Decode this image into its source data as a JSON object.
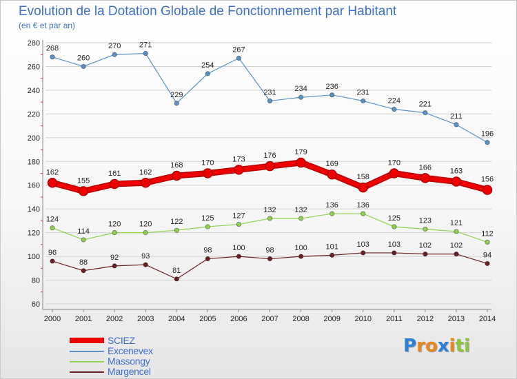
{
  "title": "Evolution de la Dotation Globale de Fonctionnement par Habitant",
  "subtitle": "(en € et par an)",
  "logo": {
    "letters": [
      "P",
      "r",
      "o",
      "x",
      "i",
      "t",
      "i"
    ],
    "colors": [
      "#2c7fd6",
      "#e8871e",
      "#e8871e",
      "#2c7fd6",
      "#e8871e",
      "#8cc63f",
      "#8cc63f"
    ]
  },
  "colors": {
    "title": "#3f6ec9",
    "grid": "#d0d0d0"
  },
  "chart_data": {
    "type": "line",
    "categories": [
      "2000",
      "2001",
      "2002",
      "2003",
      "2004",
      "2005",
      "2006",
      "2007",
      "2008",
      "2009",
      "2010",
      "2011",
      "2012",
      "2013",
      "2014"
    ],
    "yticks": [
      60,
      80,
      100,
      120,
      140,
      160,
      180,
      200,
      220,
      240,
      260,
      280
    ],
    "ylim": [
      60,
      280
    ],
    "grid": true,
    "legend_position": "bottom-left",
    "series": [
      {
        "name": "Excenevex",
        "color": "#5b93c7",
        "values": [
          268,
          260,
          270,
          271,
          229,
          254,
          267,
          231,
          234,
          236,
          231,
          224,
          221,
          211,
          196
        ]
      },
      {
        "name": "Massongy",
        "color": "#8fd14f",
        "values": [
          124,
          114,
          120,
          120,
          122,
          125,
          127,
          132,
          132,
          136,
          136,
          125,
          123,
          121,
          112
        ]
      },
      {
        "name": "Margencel",
        "color": "#6b1f22",
        "values": [
          96,
          88,
          92,
          93,
          81,
          98,
          100,
          98,
          100,
          101,
          103,
          103,
          102,
          102,
          94
        ]
      },
      {
        "name": "SCIEZ",
        "color": "#ee0000",
        "values": [
          162,
          155,
          161,
          162,
          168,
          170,
          173,
          176,
          179,
          169,
          158,
          170,
          166,
          163,
          156
        ]
      }
    ],
    "legend_order": [
      "SCIEZ",
      "Excenevex",
      "Massongy",
      "Margencel"
    ]
  }
}
